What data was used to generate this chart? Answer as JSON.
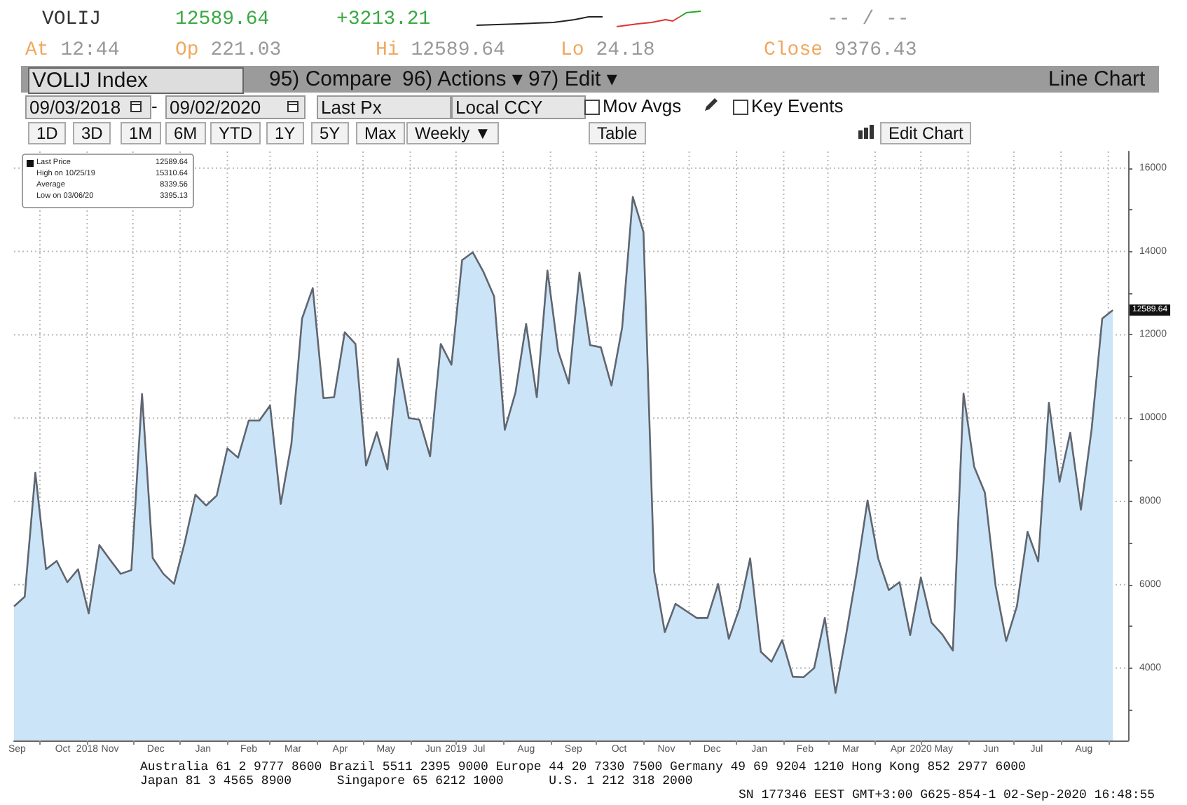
{
  "chart_data": {
    "type": "area",
    "title": "VOLIJ",
    "annotations": [
      "12589.64",
      "+3213.21",
      "-- / --",
      "At 12:44",
      "Op 221.03",
      "Hi 12589.64",
      "Lo 24.18",
      "Close 9376.43",
      "VOLIJ Index",
      "95) Compare",
      "96) Actions ▾",
      "97) Edit ▾",
      "Line Chart",
      "09/03/2018",
      "-",
      "09/02/2020",
      "Last Px",
      "Local CCY",
      "Mov Avgs",
      "Key Events",
      "1D",
      "3D",
      "1M",
      "6M",
      "YTD",
      "1Y",
      "5Y",
      "Max",
      "Weekly ▼",
      "Table",
      "Edit Chart",
      "Last Price 12589.64",
      "High on 10/25/19 15310.64",
      "Average 8339.56",
      "Low on 03/06/20 3395.13",
      "Australia 61 2 9777 8600 Brazil 5511 2395 9000 Europe 44 20 7330 7500 Germany 49 69 9204 1210 Hong Kong 852 2977 6000",
      "Japan 81 3 4565 8900      Singapore 65 6212 1000      U.S. 1 212 318 2000",
      "SN 177346 EEST GMT+3:00 G625-854-1 02-Sep-2020 16:48:55",
      {
        "text": "12589.64",
        "x": "2020-09-04",
        "y": 12589.64
      }
    ],
    "x": [
      "2018-09-14",
      "2018-09-21",
      "2018-09-28",
      "2018-10-05",
      "2018-10-12",
      "2018-10-19",
      "2018-10-26",
      "2018-11-02",
      "2018-11-09",
      "2018-11-16",
      "2018-11-23",
      "2018-11-30",
      "2018-12-07",
      "2018-12-14",
      "2018-12-21",
      "2018-12-28",
      "2019-01-04",
      "2019-01-11",
      "2019-01-18",
      "2019-01-25",
      "2019-02-01",
      "2019-02-08",
      "2019-02-15",
      "2019-02-22",
      "2019-03-01",
      "2019-03-08",
      "2019-03-15",
      "2019-03-22",
      "2019-03-29",
      "2019-04-05",
      "2019-04-12",
      "2019-04-19",
      "2019-04-26",
      "2019-05-03",
      "2019-05-10",
      "2019-05-17",
      "2019-05-24",
      "2019-05-31",
      "2019-06-07",
      "2019-06-14",
      "2019-06-21",
      "2019-06-28",
      "2019-07-05",
      "2019-07-12",
      "2019-07-19",
      "2019-07-26",
      "2019-08-02",
      "2019-08-09",
      "2019-08-16",
      "2019-08-23",
      "2019-08-30",
      "2019-09-06",
      "2019-09-13",
      "2019-09-20",
      "2019-09-27",
      "2019-10-04",
      "2019-10-11",
      "2019-10-18",
      "2019-10-25",
      "2019-11-01",
      "2019-11-08",
      "2019-11-15",
      "2019-11-22",
      "2019-11-29",
      "2019-12-06",
      "2019-12-13",
      "2019-12-20",
      "2019-12-27",
      "2020-01-03",
      "2020-01-10",
      "2020-01-17",
      "2020-01-24",
      "2020-01-31",
      "2020-02-07",
      "2020-02-14",
      "2020-02-21",
      "2020-02-28",
      "2020-03-06",
      "2020-03-13",
      "2020-03-20",
      "2020-03-27",
      "2020-04-03",
      "2020-04-10",
      "2020-04-17",
      "2020-04-24",
      "2020-05-01",
      "2020-05-08",
      "2020-05-15",
      "2020-05-22",
      "2020-05-29",
      "2020-06-05",
      "2020-06-12",
      "2020-06-19",
      "2020-06-26",
      "2020-07-03",
      "2020-07-10",
      "2020-07-17",
      "2020-07-24",
      "2020-07-31",
      "2020-08-07",
      "2020-08-14",
      "2020-08-21",
      "2020-08-28",
      "2020-09-04"
    ],
    "series": [
      {
        "color": "#cce4f7",
        "values": [
          5480,
          5710,
          8690,
          6370,
          6570,
          6060,
          6370,
          5310,
          6950,
          6600,
          6260,
          6350,
          10580,
          6640,
          6260,
          6020,
          7010,
          8160,
          7900,
          8140,
          9270,
          9050,
          9940,
          9940,
          10300,
          7940,
          9380,
          12390,
          13120,
          10480,
          10500,
          12060,
          11780,
          8860,
          9660,
          8770,
          11420,
          10000,
          9960,
          9080,
          11780,
          11280,
          13790,
          13980,
          13510,
          12920,
          9720,
          10610,
          12260,
          10500,
          13540,
          11610,
          10830,
          13490,
          11750,
          11700,
          10780,
          12170,
          15310,
          14460,
          6320,
          4860,
          5540,
          5370,
          5200,
          5200,
          6020,
          4700,
          5430,
          6630,
          4390,
          4150,
          4670,
          3790,
          3780,
          4000,
          5200,
          3400,
          4810,
          6320,
          8020,
          6630,
          5870,
          6060,
          4790,
          6170,
          5090,
          4810,
          4420,
          10590,
          8830,
          8210,
          5980,
          4650,
          5480,
          7270,
          6560,
          10370,
          8470,
          9650,
          7800,
          9720,
          12390,
          12590
        ]
      }
    ],
    "xlim": [
      "2018-09-14",
      "2020-09-14"
    ],
    "xticks": [
      {
        "value": "2018-09-16",
        "label": "Sep"
      },
      {
        "value": "2018-10-01",
        "label": null
      },
      {
        "value": "2018-10-16",
        "label": "Oct"
      },
      {
        "value": "2018-11-01",
        "label": "2018"
      },
      {
        "value": "2018-11-16",
        "label": "Nov"
      },
      {
        "value": "2018-12-01",
        "label": null
      },
      {
        "value": "2018-12-16",
        "label": "Dec"
      },
      {
        "value": "2019-01-01",
        "label": null
      },
      {
        "value": "2019-01-16",
        "label": "Jan"
      },
      {
        "value": "2019-02-01",
        "label": null
      },
      {
        "value": "2019-02-15",
        "label": "Feb"
      },
      {
        "value": "2019-03-01",
        "label": null
      },
      {
        "value": "2019-03-16",
        "label": "Mar"
      },
      {
        "value": "2019-04-01",
        "label": null
      },
      {
        "value": "2019-04-16",
        "label": "Apr"
      },
      {
        "value": "2019-05-01",
        "label": null
      },
      {
        "value": "2019-05-16",
        "label": "May"
      },
      {
        "value": "2019-06-01",
        "label": null
      },
      {
        "value": "2019-06-16",
        "label": "Jun"
      },
      {
        "value": "2019-07-01",
        "label": "2019"
      },
      {
        "value": "2019-07-16",
        "label": "Jul"
      },
      {
        "value": "2019-08-01",
        "label": null
      },
      {
        "value": "2019-08-16",
        "label": "Aug"
      },
      {
        "value": "2019-09-01",
        "label": null
      },
      {
        "value": "2019-09-16",
        "label": "Sep"
      },
      {
        "value": "2019-10-01",
        "label": null
      },
      {
        "value": "2019-10-16",
        "label": "Oct"
      },
      {
        "value": "2019-11-01",
        "label": null
      },
      {
        "value": "2019-11-16",
        "label": "Nov"
      },
      {
        "value": "2019-12-01",
        "label": null
      },
      {
        "value": "2019-12-16",
        "label": "Dec"
      },
      {
        "value": "2020-01-01",
        "label": null
      },
      {
        "value": "2020-01-16",
        "label": "Jan"
      },
      {
        "value": "2020-02-01",
        "label": null
      },
      {
        "value": "2020-02-15",
        "label": "Feb"
      },
      {
        "value": "2020-03-01",
        "label": null
      },
      {
        "value": "2020-03-16",
        "label": "Mar"
      },
      {
        "value": "2020-04-01",
        "label": null
      },
      {
        "value": "2020-04-16",
        "label": "Apr"
      },
      {
        "value": "2020-05-01",
        "label": "2020"
      },
      {
        "value": "2020-05-16",
        "label": "May"
      },
      {
        "value": "2020-06-01",
        "label": null
      },
      {
        "value": "2020-06-16",
        "label": "Jun"
      },
      {
        "value": "2020-07-01",
        "label": null
      },
      {
        "value": "2020-07-16",
        "label": "Jul"
      },
      {
        "value": "2020-08-01",
        "label": null
      },
      {
        "value": "2020-08-16",
        "label": "Aug"
      },
      {
        "value": "2020-09-01",
        "label": null
      }
    ],
    "ylim": [
      2260,
      16400
    ],
    "yticks": [
      {
        "value": 3000,
        "label": null
      },
      4000,
      {
        "value": 5000,
        "label": null
      },
      6000,
      {
        "value": 7000,
        "label": null
      },
      8000,
      {
        "value": 9000,
        "label": null
      },
      10000,
      {
        "value": 11000,
        "label": null
      },
      12000,
      {
        "value": 13000,
        "label": null
      },
      14000,
      {
        "value": 15000,
        "label": null
      },
      16000
    ],
    "grid": true,
    "marker": "none",
    "line_style": "solid"
  }
}
